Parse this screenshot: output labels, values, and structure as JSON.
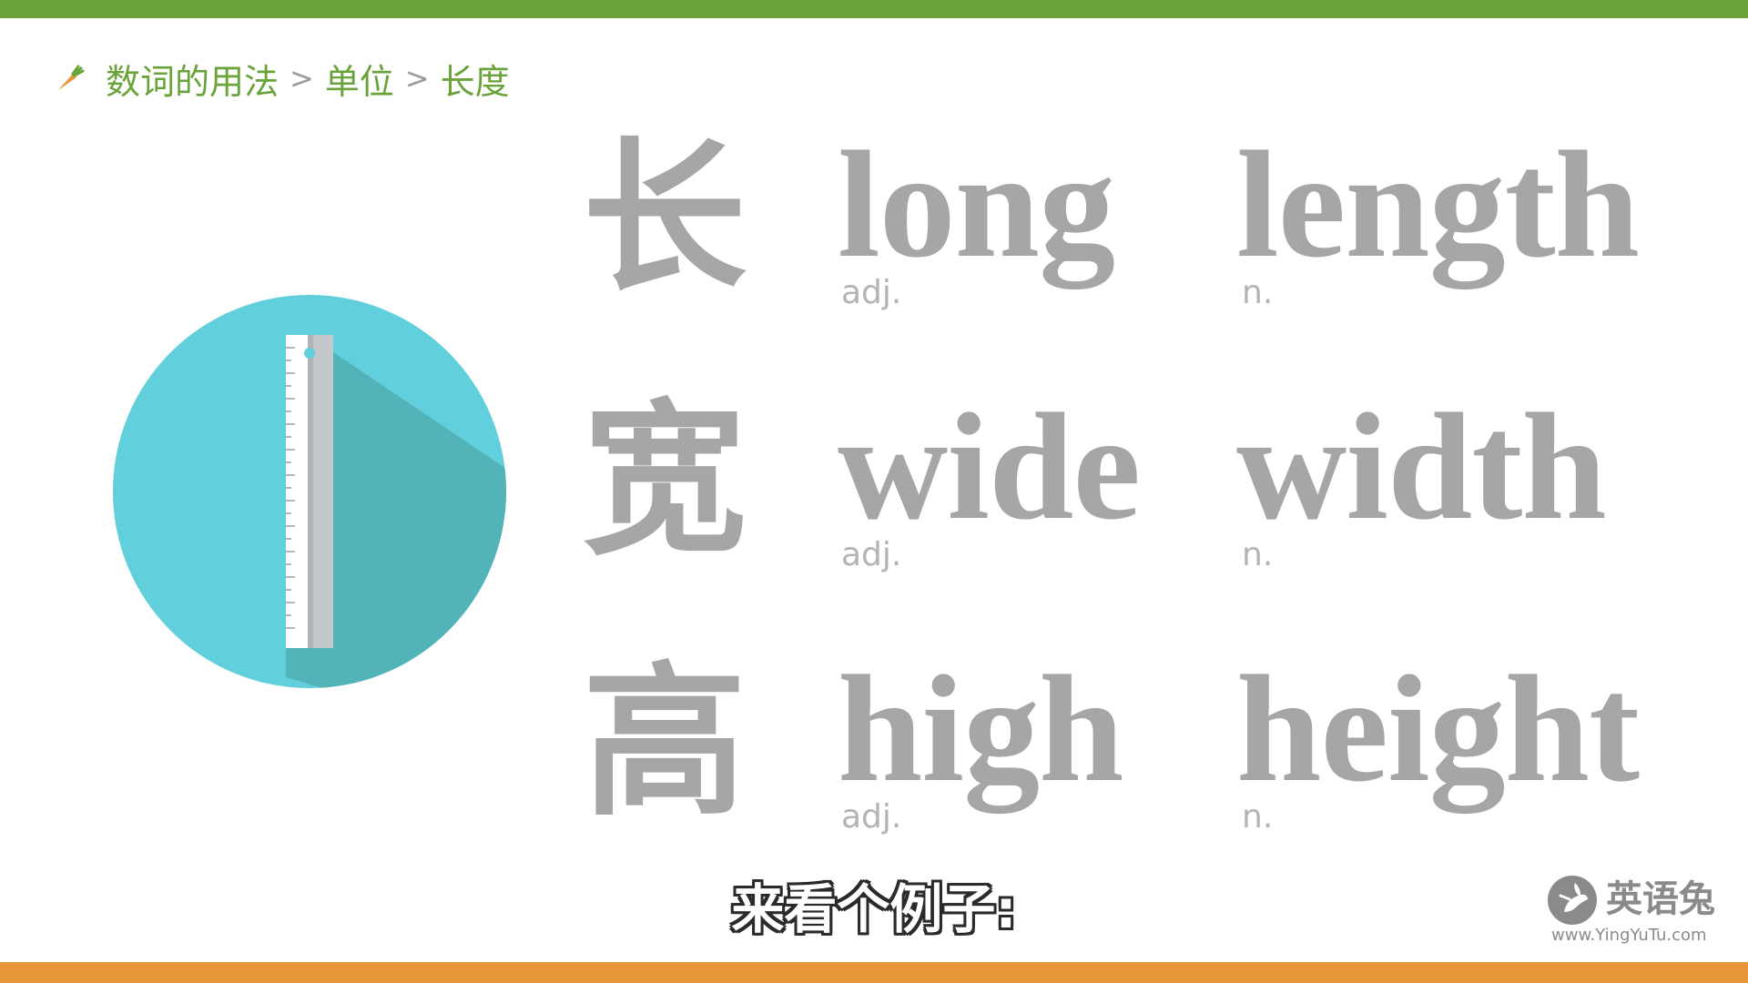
{
  "breadcrumb": {
    "items": [
      "数词的用法",
      "单位",
      "长度"
    ],
    "separator": ">"
  },
  "rows": [
    {
      "hanzi": "长",
      "adj_word": "long",
      "adj_pos": "adj.",
      "noun_word": "length",
      "noun_pos": "n."
    },
    {
      "hanzi": "宽",
      "adj_word": "wide",
      "adj_pos": "adj.",
      "noun_word": "width",
      "noun_pos": "n."
    },
    {
      "hanzi": "高",
      "adj_word": "high",
      "adj_pos": "adj.",
      "noun_word": "height",
      "noun_pos": "n."
    }
  ],
  "subtitle": "来看个例子:",
  "logo": {
    "name": "英语兔",
    "url": "www.YingYuTu.com"
  },
  "icons": {
    "breadcrumb_icon": "carrot-icon",
    "illustration": "ruler-icon",
    "logo_mark": "rabbit-icon"
  },
  "colors": {
    "top_bar": "#6aa33a",
    "bottom_bar": "#e8963a",
    "breadcrumb_text": "#6aa33a",
    "word_gray": "#a6a6a6",
    "circle": "#62d0dc",
    "circle_shadow": "#52b3b8"
  }
}
